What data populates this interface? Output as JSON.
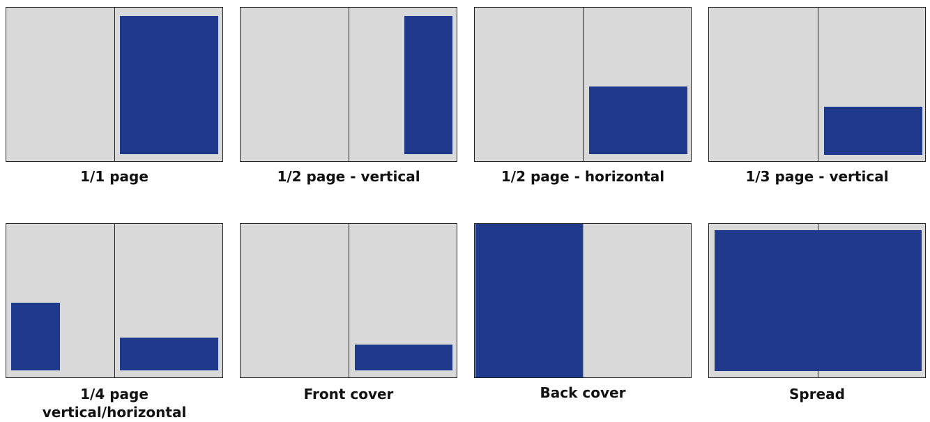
{
  "colors": {
    "page": "#d9d9d9",
    "ad": "#1f3a8c",
    "border": "#222222",
    "highlight_border": "#aab4cc"
  },
  "formats": [
    {
      "label": "1/1 page"
    },
    {
      "label": "1/2 page - vertical"
    },
    {
      "label": "1/2 page - horizontal"
    },
    {
      "label": "1/3 page - vertical"
    },
    {
      "label": "1/4 page",
      "label_line2": "vertical/horizontal"
    },
    {
      "label": "Front cover"
    },
    {
      "label": "Back cover"
    },
    {
      "label": "Spread"
    }
  ]
}
